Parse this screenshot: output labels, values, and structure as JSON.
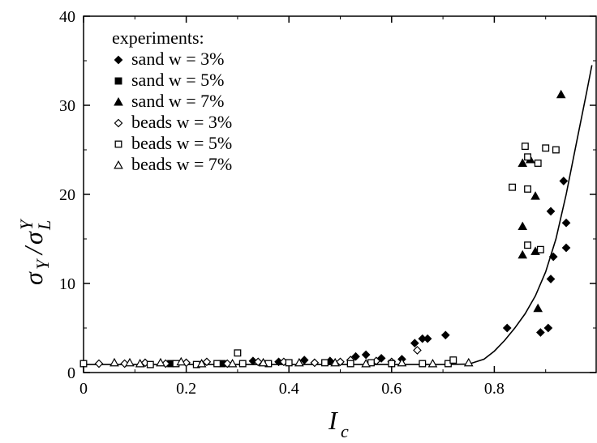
{
  "chart_data": {
    "type": "scatter",
    "title": "",
    "xlabel": {
      "main": "I",
      "sub": "c"
    },
    "ylabel": {
      "main": "σ",
      "sub1": "Y",
      "slash": "/",
      "main2": "σ",
      "sub2": "L",
      "sup2": "Y"
    },
    "xlim": [
      0,
      1.0
    ],
    "ylim": [
      0,
      40
    ],
    "x_ticks": [
      0,
      0.2,
      0.4,
      0.6,
      0.8
    ],
    "x_tick_labels": [
      "0",
      "0.2",
      "0.4",
      "0.6",
      "0.8"
    ],
    "y_ticks": [
      0,
      10,
      20,
      30,
      40
    ],
    "y_tick_labels": [
      "0",
      "10",
      "20",
      "30",
      "40"
    ],
    "legend_title": "experiments:",
    "legend_position": "top-left",
    "series": [
      {
        "name": "sand w = 3%",
        "marker": "diamond-filled",
        "points": [
          [
            0.33,
            1.3
          ],
          [
            0.38,
            1.2
          ],
          [
            0.43,
            1.4
          ],
          [
            0.48,
            1.3
          ],
          [
            0.53,
            1.8
          ],
          [
            0.55,
            2.0
          ],
          [
            0.58,
            1.6
          ],
          [
            0.62,
            1.5
          ],
          [
            0.645,
            3.3
          ],
          [
            0.66,
            3.8
          ],
          [
            0.67,
            3.8
          ],
          [
            0.705,
            4.2
          ],
          [
            0.825,
            5.0
          ],
          [
            0.89,
            4.5
          ],
          [
            0.905,
            5.0
          ],
          [
            0.91,
            18.1
          ],
          [
            0.91,
            10.5
          ],
          [
            0.915,
            13.0
          ],
          [
            0.935,
            21.5
          ],
          [
            0.94,
            16.8
          ],
          [
            0.94,
            14.0
          ]
        ]
      },
      {
        "name": "sand w = 5%",
        "marker": "square-filled",
        "points": [
          [
            0.17,
            1.0
          ],
          [
            0.27,
            1.0
          ]
        ]
      },
      {
        "name": "sand w = 7%",
        "marker": "triangle-filled",
        "points": [
          [
            0.855,
            23.5
          ],
          [
            0.855,
            13.2
          ],
          [
            0.855,
            16.4
          ],
          [
            0.87,
            23.9
          ],
          [
            0.88,
            19.8
          ],
          [
            0.88,
            13.6
          ],
          [
            0.885,
            7.2
          ],
          [
            0.93,
            31.2
          ]
        ]
      },
      {
        "name": "beads w = 3%",
        "marker": "diamond-open",
        "points": [
          [
            0.03,
            1.0
          ],
          [
            0.08,
            1.0
          ],
          [
            0.12,
            1.1
          ],
          [
            0.16,
            1.0
          ],
          [
            0.2,
            1.1
          ],
          [
            0.24,
            1.2
          ],
          [
            0.28,
            1.0
          ],
          [
            0.34,
            1.2
          ],
          [
            0.39,
            1.2
          ],
          [
            0.45,
            1.1
          ],
          [
            0.5,
            1.2
          ],
          [
            0.52,
            1.4
          ],
          [
            0.57,
            1.3
          ],
          [
            0.6,
            1.2
          ],
          [
            0.65,
            2.5
          ]
        ]
      },
      {
        "name": "beads w = 5%",
        "marker": "square-open",
        "points": [
          [
            0.0,
            1.0
          ],
          [
            0.13,
            0.9
          ],
          [
            0.18,
            1.0
          ],
          [
            0.22,
            0.9
          ],
          [
            0.26,
            1.0
          ],
          [
            0.3,
            2.2
          ],
          [
            0.31,
            1.0
          ],
          [
            0.36,
            1.0
          ],
          [
            0.4,
            1.1
          ],
          [
            0.47,
            1.1
          ],
          [
            0.52,
            1.0
          ],
          [
            0.56,
            1.1
          ],
          [
            0.6,
            1.0
          ],
          [
            0.66,
            1.0
          ],
          [
            0.71,
            1.0
          ],
          [
            0.72,
            1.4
          ],
          [
            0.835,
            20.8
          ],
          [
            0.86,
            25.4
          ],
          [
            0.865,
            24.2
          ],
          [
            0.865,
            20.6
          ],
          [
            0.865,
            14.3
          ],
          [
            0.885,
            23.5
          ],
          [
            0.89,
            13.8
          ],
          [
            0.9,
            25.2
          ],
          [
            0.92,
            25.0
          ]
        ]
      },
      {
        "name": "beads w = 7%",
        "marker": "triangle-open",
        "points": [
          [
            0.06,
            1.1
          ],
          [
            0.09,
            1.1
          ],
          [
            0.11,
            1.0
          ],
          [
            0.15,
            1.1
          ],
          [
            0.19,
            1.2
          ],
          [
            0.23,
            1.0
          ],
          [
            0.29,
            1.0
          ],
          [
            0.35,
            1.1
          ],
          [
            0.42,
            1.1
          ],
          [
            0.49,
            1.1
          ],
          [
            0.55,
            1.0
          ],
          [
            0.62,
            1.1
          ],
          [
            0.68,
            1.0
          ],
          [
            0.75,
            1.1
          ]
        ]
      }
    ],
    "fit_curve": {
      "points": [
        [
          0.0,
          0.9
        ],
        [
          0.1,
          0.9
        ],
        [
          0.2,
          0.9
        ],
        [
          0.3,
          0.9
        ],
        [
          0.4,
          0.9
        ],
        [
          0.5,
          0.9
        ],
        [
          0.6,
          0.9
        ],
        [
          0.7,
          0.9
        ],
        [
          0.75,
          0.95
        ],
        [
          0.78,
          1.5
        ],
        [
          0.8,
          2.4
        ],
        [
          0.82,
          3.6
        ],
        [
          0.84,
          5.0
        ],
        [
          0.86,
          6.6
        ],
        [
          0.88,
          8.6
        ],
        [
          0.9,
          11.3
        ],
        [
          0.92,
          15.0
        ],
        [
          0.94,
          20.0
        ],
        [
          0.96,
          25.8
        ],
        [
          0.98,
          31.5
        ],
        [
          0.99,
          34.5
        ]
      ]
    }
  }
}
